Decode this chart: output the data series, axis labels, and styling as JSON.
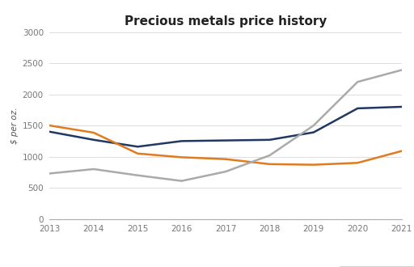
{
  "title": "Precious metals price history",
  "ylabel": "$ per oz.",
  "years": [
    2013,
    2014,
    2015,
    2016,
    2017,
    2018,
    2019,
    2020,
    2021
  ],
  "gold": [
    1400,
    1270,
    1160,
    1250,
    1260,
    1270,
    1390,
    1775,
    1800
  ],
  "platinum": [
    1500,
    1385,
    1050,
    990,
    960,
    880,
    870,
    900,
    1090
  ],
  "palladium": [
    730,
    800,
    700,
    610,
    760,
    1020,
    1500,
    2200,
    2390
  ],
  "gold_color": "#1F3864",
  "platinum_color": "#E07B20",
  "palladium_color": "#AAAAAA",
  "ylim": [
    0,
    3000
  ],
  "yticks": [
    0,
    500,
    1000,
    1500,
    2000,
    2500,
    3000
  ],
  "bg_color": "#FFFFFF",
  "grid_color": "#DDDDDD",
  "title_fontsize": 11,
  "label_fontsize": 7.5,
  "legend_fontsize": 8,
  "tick_color": "#777777",
  "linewidth": 1.8
}
